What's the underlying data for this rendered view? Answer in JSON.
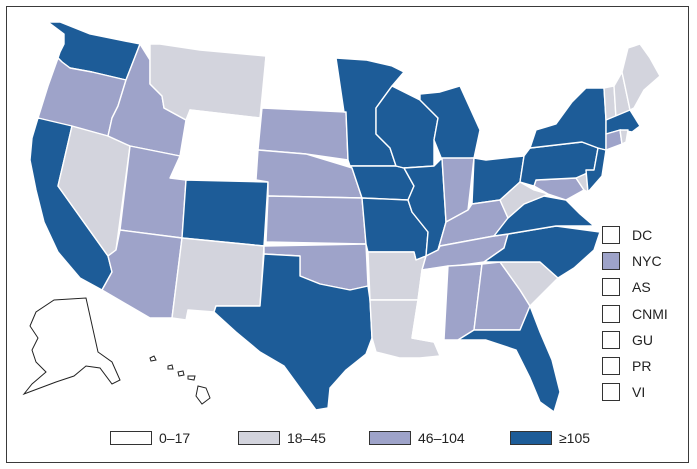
{
  "colors": {
    "bin_0_17": "#ffffff",
    "bin_18_45": "#d3d4dd",
    "bin_46_104": "#9ea3c9",
    "bin_105_plus": "#1d5c98",
    "border": "#ffffff"
  },
  "legend": [
    {
      "label": "0–17",
      "bin": "bin_0_17"
    },
    {
      "label": "18–45",
      "bin": "bin_18_45"
    },
    {
      "label": "46–104",
      "bin": "bin_46_104"
    },
    {
      "label": "≥105",
      "bin": "bin_105_plus"
    }
  ],
  "territories": [
    {
      "label": "DC",
      "bin": "bin_0_17"
    },
    {
      "label": "NYC",
      "bin": "bin_46_104"
    },
    {
      "label": "AS",
      "bin": "bin_0_17"
    },
    {
      "label": "CNMI",
      "bin": "bin_0_17"
    },
    {
      "label": "GU",
      "bin": "bin_0_17"
    },
    {
      "label": "PR",
      "bin": "bin_0_17"
    },
    {
      "label": "VI",
      "bin": "bin_0_17"
    }
  ],
  "states": {
    "WA": "bin_105_plus",
    "OR": "bin_46_104",
    "CA": "bin_105_plus",
    "NV": "bin_18_45",
    "ID": "bin_46_104",
    "MT": "bin_18_45",
    "WY": "bin_0_17",
    "UT": "bin_46_104",
    "AZ": "bin_46_104",
    "CO": "bin_105_plus",
    "NM": "bin_18_45",
    "ND": "bin_0_17",
    "SD": "bin_46_104",
    "NE": "bin_46_104",
    "KS": "bin_46_104",
    "OK": "bin_46_104",
    "TX": "bin_105_plus",
    "MN": "bin_105_plus",
    "IA": "bin_105_plus",
    "MO": "bin_105_plus",
    "AR": "bin_18_45",
    "LA": "bin_18_45",
    "WI": "bin_105_plus",
    "IL": "bin_105_plus",
    "MI": "bin_105_plus",
    "IN": "bin_46_104",
    "OH": "bin_105_plus",
    "KY": "bin_46_104",
    "TN": "bin_46_104",
    "MS": "bin_0_17",
    "AL": "bin_46_104",
    "GA": "bin_46_104",
    "FL": "bin_105_plus",
    "SC": "bin_18_45",
    "NC": "bin_105_plus",
    "VA": "bin_105_plus",
    "WV": "bin_18_45",
    "PA": "bin_105_plus",
    "NY": "bin_105_plus",
    "NJ": "bin_105_plus",
    "DE": "bin_18_45",
    "MD": "bin_46_104",
    "CT": "bin_46_104",
    "RI": "bin_18_45",
    "MA": "bin_105_plus",
    "VT": "bin_18_45",
    "NH": "bin_18_45",
    "ME": "bin_18_45",
    "AK": "bin_0_17",
    "HI": "bin_0_17"
  }
}
